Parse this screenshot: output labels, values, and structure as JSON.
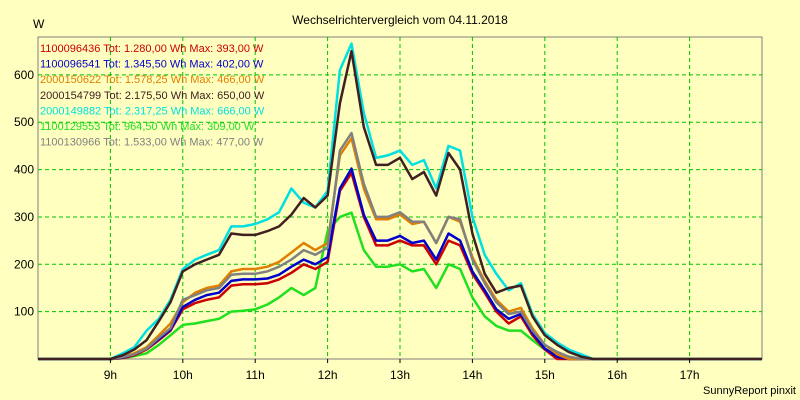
{
  "chart_data": {
    "type": "line",
    "title": "Wechselrichtervergleich vom 04.11.2018",
    "ylabel": "W",
    "xlabel": "",
    "footer": "SunnyReport pinxit",
    "x_ticks": [
      "9h",
      "10h",
      "11h",
      "12h",
      "13h",
      "14h",
      "15h",
      "16h",
      "17h"
    ],
    "y_ticks": [
      100,
      200,
      300,
      400,
      500,
      600
    ],
    "xlim": [
      8.0,
      18.0
    ],
    "ylim": [
      0,
      680
    ],
    "grid": true,
    "legend_position": "top-left",
    "x": [
      8.0,
      8.17,
      8.33,
      8.5,
      8.67,
      8.83,
      9.0,
      9.17,
      9.33,
      9.5,
      9.67,
      9.83,
      10.0,
      10.17,
      10.33,
      10.5,
      10.67,
      10.83,
      11.0,
      11.17,
      11.33,
      11.5,
      11.67,
      11.83,
      12.0,
      12.17,
      12.33,
      12.5,
      12.67,
      12.83,
      13.0,
      13.17,
      13.33,
      13.5,
      13.67,
      13.83,
      14.0,
      14.17,
      14.33,
      14.5,
      14.67,
      14.83,
      15.0,
      15.17,
      15.33,
      15.5,
      15.67,
      15.83,
      16.0,
      16.17,
      16.33,
      16.5,
      16.67,
      16.83,
      17.0,
      17.17,
      17.33,
      17.5,
      17.67,
      17.83,
      18.0
    ],
    "series": [
      {
        "name": "1100096436",
        "label": "1100096436 Tot: 1.280,00 Wh Max: 393,00 W",
        "color": "#cc0000",
        "values": [
          0,
          0,
          0,
          0,
          0,
          0,
          0,
          2,
          8,
          20,
          40,
          60,
          105,
          118,
          125,
          130,
          155,
          158,
          158,
          160,
          168,
          182,
          200,
          190,
          205,
          355,
          393,
          300,
          240,
          240,
          250,
          240,
          240,
          200,
          250,
          240,
          180,
          140,
          100,
          75,
          90,
          50,
          20,
          0,
          0,
          0,
          0,
          0,
          0,
          0,
          0,
          0,
          0,
          0,
          0,
          0,
          0,
          0,
          0,
          0,
          0
        ]
      },
      {
        "name": "1100096541",
        "label": "1100096541 Tot: 1.345,50 Wh Max: 402,00 W",
        "color": "#0000cc",
        "values": [
          0,
          0,
          0,
          0,
          0,
          0,
          0,
          3,
          10,
          22,
          42,
          62,
          110,
          125,
          135,
          140,
          165,
          168,
          168,
          170,
          178,
          195,
          210,
          200,
          215,
          360,
          402,
          305,
          250,
          250,
          260,
          245,
          250,
          210,
          265,
          250,
          185,
          145,
          105,
          85,
          95,
          55,
          22,
          5,
          0,
          0,
          0,
          0,
          0,
          0,
          0,
          0,
          0,
          0,
          0,
          0,
          0,
          0,
          0,
          0,
          0
        ]
      },
      {
        "name": "2000150622",
        "label": "2000150622 Tot: 1.578,25 Wh Max: 466,00 W",
        "color": "#e08000",
        "values": [
          0,
          0,
          0,
          0,
          0,
          0,
          0,
          5,
          12,
          25,
          50,
          75,
          120,
          140,
          150,
          155,
          185,
          190,
          190,
          195,
          205,
          225,
          245,
          230,
          245,
          430,
          466,
          360,
          295,
          295,
          305,
          285,
          290,
          245,
          300,
          290,
          215,
          165,
          125,
          100,
          108,
          65,
          30,
          10,
          0,
          0,
          0,
          0,
          0,
          0,
          0,
          0,
          0,
          0,
          0,
          0,
          0,
          0,
          0,
          0,
          0
        ]
      },
      {
        "name": "2000154799",
        "label": "2000154799 Tot: 2.175,50 Wh Max: 650,00 W",
        "color": "#402020",
        "values": [
          0,
          0,
          0,
          0,
          0,
          0,
          0,
          8,
          20,
          40,
          80,
          120,
          185,
          200,
          210,
          220,
          265,
          262,
          262,
          270,
          280,
          305,
          340,
          320,
          345,
          540,
          650,
          490,
          410,
          410,
          425,
          380,
          395,
          345,
          435,
          400,
          265,
          180,
          140,
          150,
          155,
          90,
          50,
          30,
          15,
          5,
          0,
          0,
          0,
          0,
          0,
          0,
          0,
          0,
          0,
          0,
          0,
          0,
          0,
          0,
          0
        ]
      },
      {
        "name": "2000149882",
        "label": "2000149882 Tot: 2.317,25 Wh Max: 666,00 W",
        "color": "#00e0e0",
        "values": [
          0,
          0,
          0,
          0,
          0,
          0,
          0,
          12,
          25,
          60,
          85,
          125,
          190,
          210,
          220,
          230,
          280,
          280,
          285,
          295,
          310,
          360,
          330,
          320,
          355,
          610,
          666,
          520,
          425,
          430,
          440,
          410,
          420,
          360,
          450,
          440,
          300,
          220,
          180,
          145,
          160,
          95,
          55,
          35,
          20,
          10,
          0,
          0,
          0,
          0,
          0,
          0,
          0,
          0,
          0,
          0,
          0,
          0,
          0,
          0,
          0
        ]
      },
      {
        "name": "1100129553",
        "label": "1100129553 Tot: 964,50 Wh Max: 309,00 W",
        "color": "#20e020",
        "values": [
          0,
          0,
          0,
          0,
          0,
          0,
          0,
          2,
          6,
          12,
          30,
          50,
          72,
          75,
          80,
          85,
          100,
          102,
          105,
          115,
          130,
          150,
          135,
          150,
          270,
          300,
          309,
          230,
          195,
          195,
          200,
          185,
          190,
          150,
          200,
          190,
          130,
          90,
          70,
          60,
          60,
          40,
          20,
          10,
          0,
          0,
          0,
          0,
          0,
          0,
          0,
          0,
          0,
          0,
          0,
          0,
          0,
          0,
          0,
          0,
          0
        ]
      },
      {
        "name": "1100130966",
        "label": "1100130966 Tot: 1.533,00 Wh Max: 477,00 W",
        "color": "#808080",
        "values": [
          0,
          0,
          0,
          0,
          0,
          0,
          0,
          4,
          10,
          22,
          45,
          65,
          125,
          135,
          145,
          150,
          178,
          180,
          180,
          185,
          195,
          210,
          230,
          220,
          235,
          440,
          477,
          370,
          300,
          300,
          310,
          290,
          290,
          245,
          300,
          295,
          210,
          160,
          120,
          95,
          100,
          60,
          30,
          15,
          5,
          0,
          0,
          0,
          0,
          0,
          0,
          0,
          0,
          0,
          0,
          0,
          0,
          0,
          0,
          0,
          0
        ]
      }
    ]
  }
}
